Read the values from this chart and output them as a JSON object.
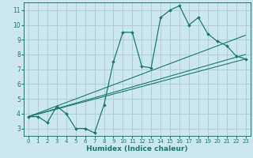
{
  "xlabel": "Humidex (Indice chaleur)",
  "ylabel": "",
  "bg_color": "#cce8ec",
  "grid_color": "#aed0d5",
  "line_color": "#1a7a6e",
  "xlim": [
    -0.5,
    23.5
  ],
  "ylim": [
    2.5,
    11.5
  ],
  "xticks": [
    0,
    1,
    2,
    3,
    4,
    5,
    6,
    7,
    8,
    9,
    10,
    11,
    12,
    13,
    14,
    15,
    16,
    17,
    18,
    19,
    20,
    21,
    22,
    23
  ],
  "yticks": [
    3,
    4,
    5,
    6,
    7,
    8,
    9,
    10,
    11
  ],
  "series": [
    {
      "x": [
        0,
        1,
        2,
        3,
        4,
        5,
        6,
        7,
        8,
        9,
        10,
        11,
        12,
        13,
        14,
        15,
        16,
        17,
        18,
        19,
        20,
        21,
        22,
        23
      ],
      "y": [
        3.8,
        3.8,
        3.4,
        4.5,
        4.0,
        3.0,
        3.0,
        2.7,
        4.6,
        7.5,
        9.5,
        9.5,
        7.2,
        7.1,
        10.5,
        11.0,
        11.3,
        10.0,
        10.5,
        9.4,
        8.9,
        8.6,
        7.9,
        7.7
      ]
    },
    {
      "x": [
        0,
        23
      ],
      "y": [
        3.8,
        9.3
      ]
    },
    {
      "x": [
        0,
        23
      ],
      "y": [
        3.8,
        8.0
      ]
    },
    {
      "x": [
        0,
        23
      ],
      "y": [
        3.8,
        7.7
      ]
    }
  ]
}
